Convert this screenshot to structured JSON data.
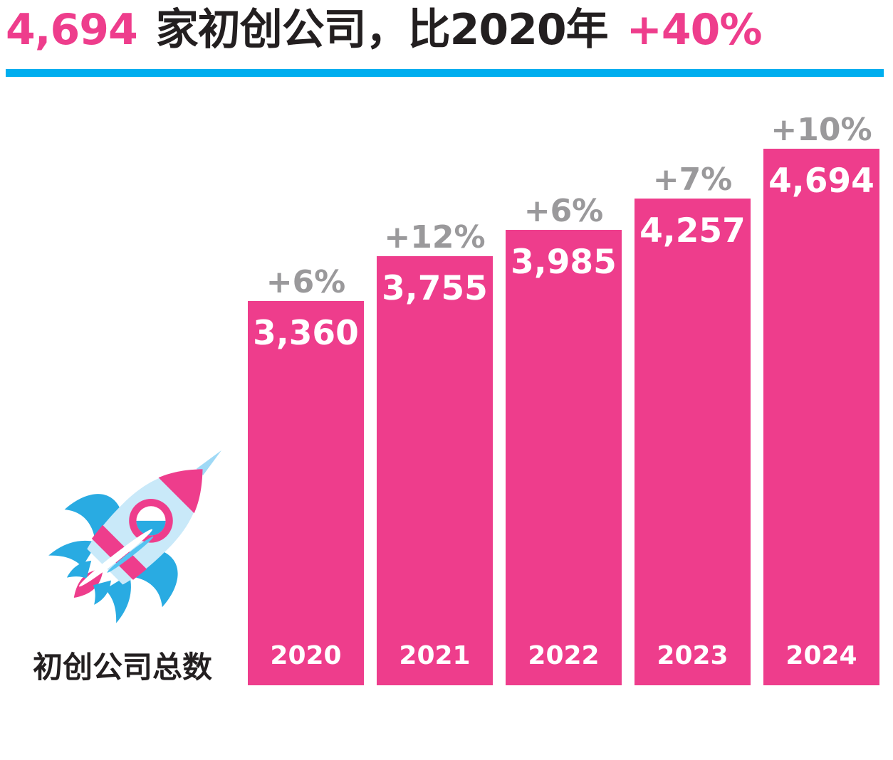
{
  "title": {
    "highlight_value": "4,694",
    "middle_text": "家初创公司，比2020年",
    "growth_value": "+40%"
  },
  "caption": "初创公司总数",
  "colors": {
    "pink": "#EE3D8C",
    "rule_blue": "#00AEEF",
    "growth_gray": "#9A999B",
    "text_black": "#231F20",
    "bar_label_white": "#FFFFFF",
    "rocket_light_blue": "#C9E9F9",
    "rocket_cyan": "#29ABE2"
  },
  "icons": {
    "rocket": "rocket-icon"
  },
  "chart_data": {
    "type": "bar",
    "title": "4,694 家初创公司，比2020年 +40%",
    "categories": [
      "2020",
      "2021",
      "2022",
      "2023",
      "2024"
    ],
    "values": [
      3360,
      3755,
      3985,
      4257,
      4694
    ],
    "value_labels": [
      "3,360",
      "3,755",
      "3,985",
      "4,257",
      "4,694"
    ],
    "growth_labels": [
      "+6%",
      "+12%",
      "+6%",
      "+7%",
      "+10%"
    ],
    "series": [
      {
        "name": "初创公司总数",
        "values": [
          3360,
          3755,
          3985,
          4257,
          4694
        ]
      }
    ],
    "xlabel": "",
    "ylabel": "初创公司总数",
    "ylim": [
      0,
      4694
    ],
    "grid": false,
    "legend_position": "none",
    "bar_color": "#EE3D8C"
  }
}
